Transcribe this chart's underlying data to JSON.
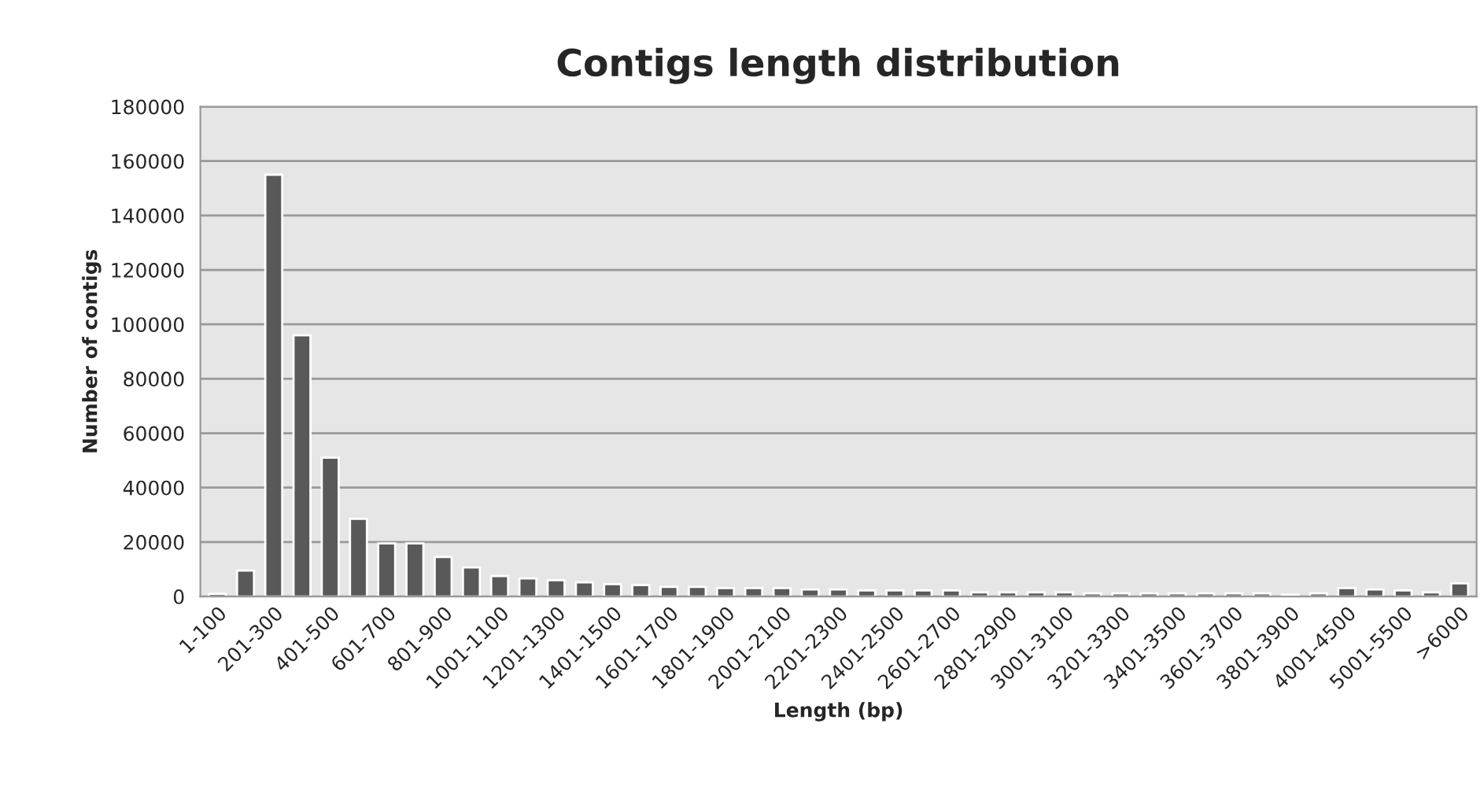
{
  "chart_data": {
    "type": "bar",
    "title": "Contigs length distribution",
    "xlabel": "Length (bp)",
    "ylabel": "Number of contigs",
    "categories": [
      "1-100",
      null,
      "201-300",
      null,
      "401-500",
      null,
      "601-700",
      null,
      "801-900",
      null,
      "1001-1100",
      null,
      "1201-1300",
      null,
      "1401-1500",
      null,
      "1601-1700",
      null,
      "1801-1900",
      null,
      "2001-2100",
      null,
      "2201-2300",
      null,
      "2401-2500",
      null,
      "2601-2700",
      null,
      "2801-2900",
      null,
      "3001-3100",
      null,
      "3201-3300",
      null,
      "3401-3500",
      null,
      "3601-3700",
      null,
      "3801-3900",
      null,
      "4001-4500",
      null,
      "5001-5500",
      null,
      ">6000"
    ],
    "values": [
      1000,
      9500,
      155000,
      96000,
      51000,
      28500,
      19500,
      19500,
      14500,
      10700,
      7500,
      6600,
      6000,
      5200,
      4500,
      4200,
      3500,
      3500,
      3100,
      3100,
      3100,
      2600,
      2600,
      2200,
      2200,
      2200,
      2200,
      1500,
      1500,
      1500,
      1500,
      1100,
      1100,
      1100,
      1100,
      1100,
      1100,
      1100,
      700,
      1100,
      3100,
      2600,
      2200,
      1500,
      4800
    ],
    "color": "#595959",
    "ylim": [
      0,
      180000
    ],
    "yticks": [
      0,
      20000,
      40000,
      60000,
      80000,
      100000,
      120000,
      140000,
      160000,
      180000
    ],
    "grid": "y"
  }
}
